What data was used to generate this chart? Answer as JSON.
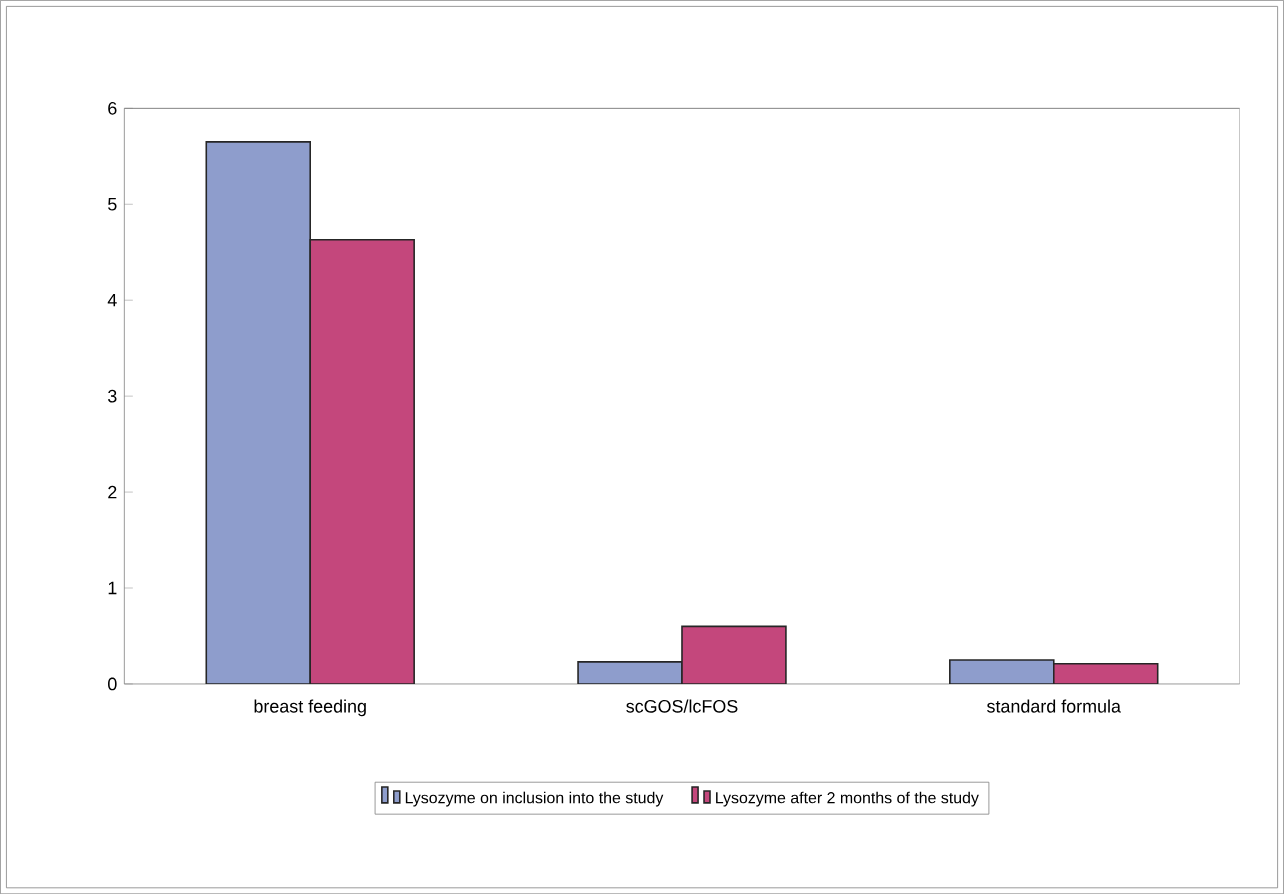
{
  "chart_data": {
    "type": "bar",
    "categories": [
      "breast feeding",
      "scGOS/lcFOS",
      "standard formula"
    ],
    "series": [
      {
        "name": "Lysozyme on inclusion into the study",
        "color": "#8e9dcc",
        "values": [
          5.65,
          0.23,
          0.25
        ]
      },
      {
        "name": "Lysozyme after 2 months of the study",
        "color": "#c4477c",
        "values": [
          4.63,
          0.6,
          0.21
        ]
      }
    ],
    "ylim": [
      0,
      6
    ],
    "yticks": [
      0,
      1,
      2,
      3,
      4,
      5,
      6
    ],
    "grid": false,
    "legend": "bottom"
  }
}
